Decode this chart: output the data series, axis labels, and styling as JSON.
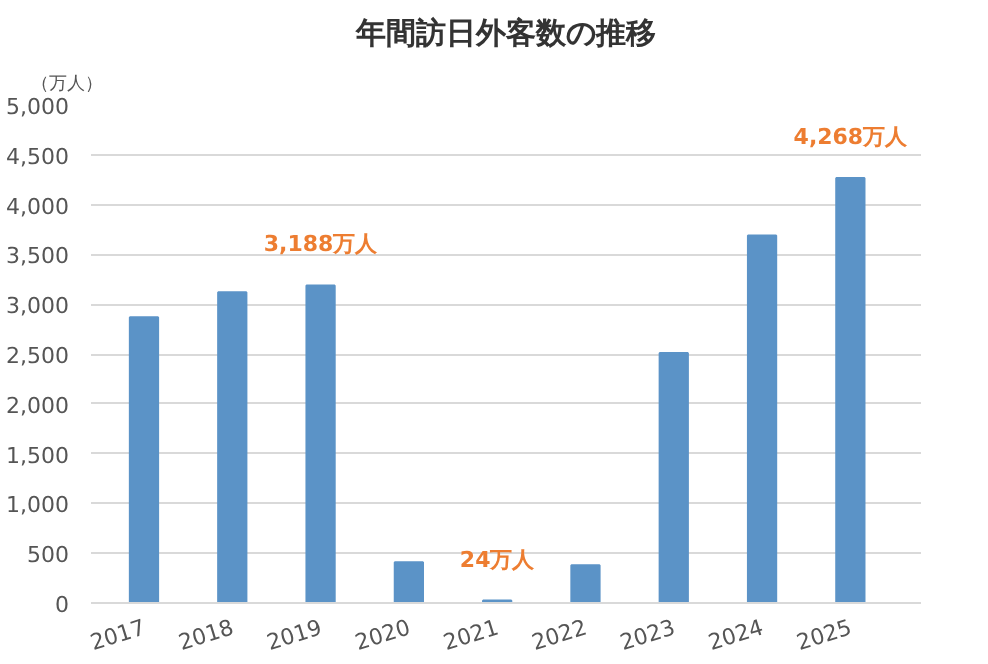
{
  "chart_data": {
    "type": "bar",
    "title": "年間訪日外客数の推移",
    "ylabel": "（万人）",
    "categories": [
      "2017",
      "2018",
      "2019",
      "2020",
      "2021",
      "2022",
      "2023",
      "2024",
      "2025"
    ],
    "values": [
      2870,
      3120,
      3188,
      410,
      24,
      380,
      2510,
      3690,
      4268
    ],
    "value_labels": [
      null,
      null,
      "3,188万人",
      null,
      "24万人",
      null,
      null,
      null,
      "4,268万人"
    ],
    "color": "#5b93c7",
    "ylim": [
      0,
      5000
    ],
    "yticks": [
      {
        "value": 0,
        "label": "0"
      },
      {
        "value": 500,
        "label": "500"
      },
      {
        "value": 1000,
        "label": "1,000"
      },
      {
        "value": 1500,
        "label": "1,500"
      },
      {
        "value": 2000,
        "label": "2,000"
      },
      {
        "value": 2500,
        "label": "2,500"
      },
      {
        "value": 3000,
        "label": "3,000"
      },
      {
        "value": 3500,
        "label": "3,500"
      },
      {
        "value": 4000,
        "label": "4,000"
      },
      {
        "value": 4500,
        "label": "4,500"
      },
      {
        "value": 5000,
        "label": "5,000"
      }
    ],
    "grid": "y"
  }
}
